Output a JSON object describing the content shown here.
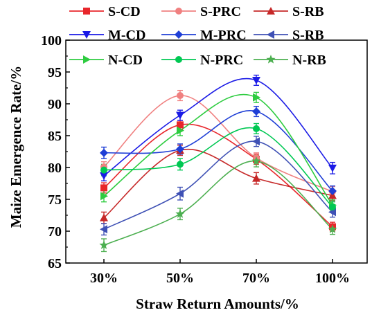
{
  "chart_data": {
    "type": "line",
    "xlabel": "Straw Return Amounts/%",
    "ylabel": "Maize Emergence Rate/%",
    "categories": [
      "30%",
      "50%",
      "70%",
      "100%"
    ],
    "ylim": [
      65,
      100
    ],
    "yticks": [
      65,
      70,
      75,
      80,
      85,
      90,
      95,
      100
    ],
    "legend_position": "top",
    "series": [
      {
        "name": "S-CD",
        "color": "#e8262b",
        "marker": "square",
        "values": [
          76.8,
          86.7,
          81.3,
          70.7
        ],
        "errors": [
          0.8,
          0.7,
          0.8,
          0.7
        ]
      },
      {
        "name": "S-PRC",
        "color": "#f08080",
        "marker": "circle",
        "values": [
          80.1,
          91.3,
          81.5,
          76.2
        ],
        "errors": [
          0.8,
          0.8,
          0.8,
          0.8
        ]
      },
      {
        "name": "S-RB",
        "color": "#c62828",
        "marker": "triangle-up",
        "values": [
          72.1,
          82.7,
          78.3,
          75.6
        ],
        "errors": [
          0.9,
          0.8,
          0.9,
          0.8
        ]
      },
      {
        "name": "M-CD",
        "color": "#1a1ae6",
        "marker": "triangle-down",
        "values": [
          78.7,
          88.2,
          93.7,
          79.9
        ],
        "errors": [
          0.8,
          0.8,
          0.8,
          0.9
        ]
      },
      {
        "name": "M-PRC",
        "color": "#1f3fd6",
        "marker": "diamond",
        "values": [
          82.3,
          82.9,
          88.8,
          76.3
        ],
        "errors": [
          0.9,
          0.8,
          0.8,
          0.8
        ]
      },
      {
        "name": "S-RB",
        "color": "#3f51b5",
        "marker": "triangle-left",
        "values": [
          70.3,
          75.9,
          84.1,
          73.0
        ],
        "errors": [
          0.9,
          1.0,
          0.8,
          0.8
        ]
      },
      {
        "name": "N-CD",
        "color": "#2ecc40",
        "marker": "triangle-right",
        "values": [
          75.5,
          85.8,
          91.0,
          74.1
        ],
        "errors": [
          0.9,
          0.8,
          0.8,
          0.8
        ]
      },
      {
        "name": "N-PRC",
        "color": "#00c853",
        "marker": "circle",
        "values": [
          79.6,
          80.5,
          86.1,
          73.8
        ],
        "errors": [
          0.9,
          0.9,
          0.8,
          0.8
        ]
      },
      {
        "name": "N-RB",
        "color": "#4caf50",
        "marker": "star",
        "values": [
          67.8,
          72.7,
          81.0,
          70.3
        ],
        "errors": [
          1.0,
          0.9,
          0.9,
          0.8
        ]
      }
    ]
  }
}
